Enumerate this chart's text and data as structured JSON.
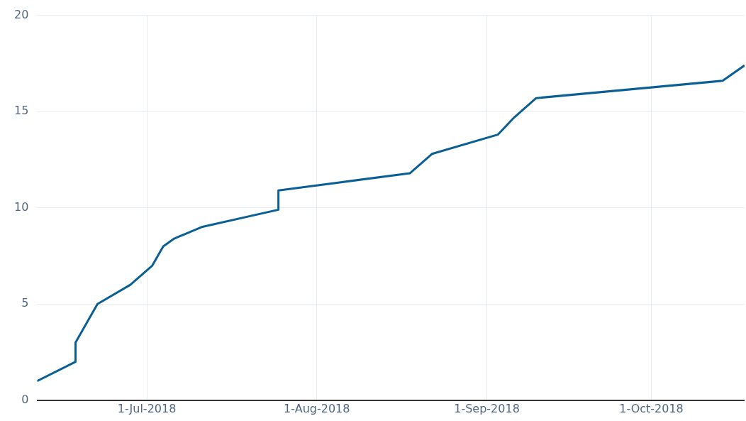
{
  "chart_data": {
    "type": "line",
    "x": [
      "2018-06-11",
      "2018-06-18",
      "2018-06-18",
      "2018-06-22",
      "2018-06-28",
      "2018-07-02",
      "2018-07-04",
      "2018-07-06",
      "2018-07-11",
      "2018-07-25",
      "2018-07-25",
      "2018-08-18",
      "2018-08-22",
      "2018-09-03",
      "2018-09-06",
      "2018-09-10",
      "2018-10-14",
      "2018-10-18"
    ],
    "series": [
      {
        "color": "#0b5f94",
        "values": [
          1,
          2,
          3,
          5,
          6,
          7,
          8,
          8.4,
          9,
          9.9,
          10.9,
          11.8,
          12.8,
          13.8,
          14.7,
          15.7,
          16.6,
          17.4
        ]
      }
    ],
    "xlim": [
      "2018-06-11",
      "2018-10-18"
    ],
    "xticks": [
      {
        "value": "2018-07-01",
        "label": "1-Jul-2018"
      },
      {
        "value": "2018-08-01",
        "label": "1-Aug-2018"
      },
      {
        "value": "2018-09-01",
        "label": "1-Sep-2018"
      },
      {
        "value": "2018-10-01",
        "label": "1-Oct-2018"
      }
    ],
    "ylim": [
      0,
      20
    ],
    "yticks": [
      0,
      5,
      10,
      15,
      20
    ],
    "grid": true,
    "legend": false,
    "marker": "none",
    "line_style": "solid"
  }
}
